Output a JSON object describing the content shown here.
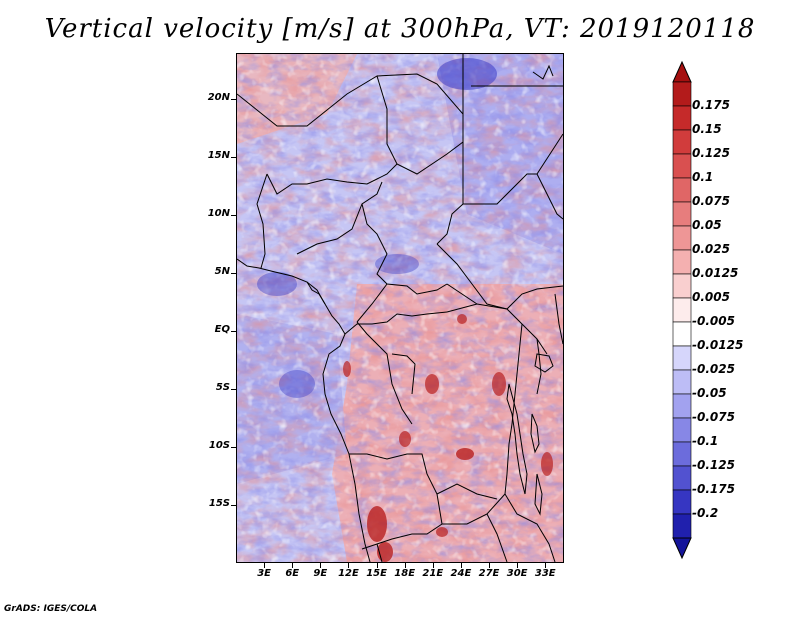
{
  "title": "Vertical velocity [m/s] at 300hPa, VT: 2019120118",
  "footer": "GrADS: IGES/COLA",
  "map": {
    "lon_range": [
      0,
      35
    ],
    "lat_range": [
      -20,
      24
    ],
    "lat_labels": [
      {
        "lat": 20,
        "text": "20N"
      },
      {
        "lat": 15,
        "text": "15N"
      },
      {
        "lat": 10,
        "text": "10N"
      },
      {
        "lat": 5,
        "text": "5N"
      },
      {
        "lat": 0,
        "text": "EQ"
      },
      {
        "lat": -5,
        "text": "5S"
      },
      {
        "lat": -10,
        "text": "10S"
      },
      {
        "lat": -15,
        "text": "15S"
      }
    ],
    "lon_labels": [
      {
        "lon": 3,
        "text": "3E"
      },
      {
        "lon": 6,
        "text": "6E"
      },
      {
        "lon": 9,
        "text": "9E"
      },
      {
        "lon": 12,
        "text": "12E"
      },
      {
        "lon": 15,
        "text": "15E"
      },
      {
        "lon": 18,
        "text": "18E"
      },
      {
        "lon": 21,
        "text": "21E"
      },
      {
        "lon": 24,
        "text": "24E"
      },
      {
        "lon": 27,
        "text": "27E"
      },
      {
        "lon": 30,
        "text": "30E"
      },
      {
        "lon": 33,
        "text": "33E"
      }
    ]
  },
  "colorbar": {
    "levels": [
      "0.175",
      "0.15",
      "0.125",
      "0.1",
      "0.075",
      "0.05",
      "0.025",
      "0.0125",
      "0.005",
      "-0.005",
      "-0.0125",
      "-0.025",
      "-0.05",
      "-0.075",
      "-0.1",
      "-0.125",
      "-0.175",
      "-0.2"
    ],
    "colors": [
      "#b31b1b",
      "#c52a2a",
      "#d13c3c",
      "#d95050",
      "#e06666",
      "#e77d7d",
      "#ee9696",
      "#f4b0b0",
      "#f9cfcf",
      "#fdecec",
      "#ffffff",
      "#d6d6fb",
      "#bdbdf6",
      "#a2a2ef",
      "#8787e6",
      "#6c6cdc",
      "#5252d0",
      "#3636c2",
      "#2020ad"
    ],
    "top_color": "#a51010",
    "bottom_color": "#14149a"
  }
}
